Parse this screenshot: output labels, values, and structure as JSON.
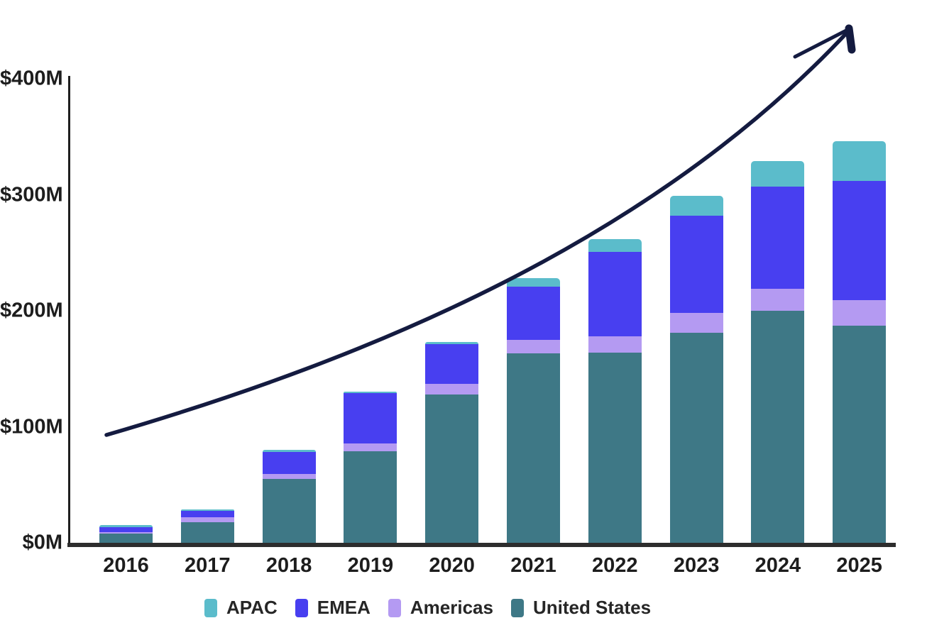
{
  "chart_data": {
    "type": "bar",
    "stacked": true,
    "title": "",
    "xlabel": "",
    "ylabel": "",
    "categories": [
      "2016",
      "2017",
      "2018",
      "2019",
      "2020",
      "2021",
      "2022",
      "2023",
      "2024",
      "2025"
    ],
    "series": [
      {
        "name": "United States",
        "color": "#3e7886",
        "values": [
          8,
          18,
          55,
          79,
          128,
          163,
          164,
          181,
          200,
          187
        ]
      },
      {
        "name": "Americas",
        "color": "#b49af2",
        "values": [
          1,
          4,
          4.5,
          6.5,
          9,
          12,
          14,
          17,
          19,
          22
        ]
      },
      {
        "name": "EMEA",
        "color": "#483ff0",
        "values": [
          4.5,
          5.5,
          19,
          43.5,
          34,
          46,
          73,
          84,
          88,
          103
        ]
      },
      {
        "name": "APAC",
        "color": "#5bbccb",
        "values": [
          1.5,
          1.5,
          1.5,
          1.5,
          2,
          7,
          11,
          17,
          22,
          34
        ]
      }
    ],
    "series_order_bottom_to_top": [
      "United States",
      "Americas",
      "EMEA",
      "APAC"
    ],
    "approx_totals": [
      15,
      29,
      80,
      130.5,
      173,
      228,
      262,
      299,
      329,
      346
    ],
    "y_axis": {
      "unit": "USD millions",
      "min": 0,
      "max": 400,
      "ticks": [
        {
          "label": "$0M",
          "value": 0
        },
        {
          "label": "$100M",
          "value": 100
        },
        {
          "label": "$200M",
          "value": 200
        },
        {
          "label": "$300M",
          "value": 300
        },
        {
          "label": "$400M",
          "value": 400
        }
      ]
    },
    "legend": {
      "position": "bottom",
      "items": [
        {
          "label": "APAC",
          "color": "#5bbccb"
        },
        {
          "label": "EMEA",
          "color": "#483ff0"
        },
        {
          "label": "Americas",
          "color": "#b49af2"
        },
        {
          "label": "United States",
          "color": "#3e7886"
        }
      ]
    },
    "annotation": {
      "type": "hand-drawn growth arrow",
      "direction": "up-right",
      "color": "#141b40"
    },
    "axis_color": "#1f1f1f",
    "text_color": "#1d1d1d",
    "grid": false
  }
}
